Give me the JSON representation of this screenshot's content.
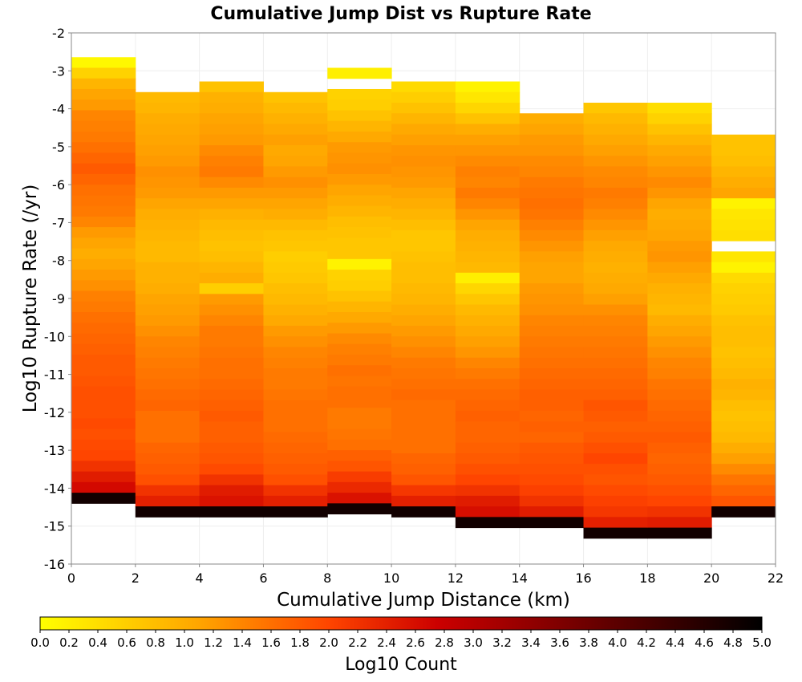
{
  "chart_data": {
    "type": "heatmap",
    "title": "Cumulative Jump Dist vs Rupture Rate",
    "xlabel": "Cumulative Jump Distance (km)",
    "ylabel": "Log10 Rupture Rate (/yr)",
    "colorbar_label": "Log10 Count",
    "xlim": [
      0,
      22
    ],
    "ylim": [
      -16,
      -2
    ],
    "x_ticks": [
      "0",
      "2",
      "4",
      "6",
      "8",
      "10",
      "12",
      "14",
      "16",
      "18",
      "20",
      "22"
    ],
    "y_ticks": [
      "-2",
      "-3",
      "-4",
      "-5",
      "-6",
      "-7",
      "-8",
      "-9",
      "-10",
      "-11",
      "-12",
      "-13",
      "-14",
      "-15",
      "-16"
    ],
    "colorbar_range": [
      0,
      5
    ],
    "colorbar_ticks": [
      "0.0",
      "0.2",
      "0.4",
      "0.6",
      "0.8",
      "1.0",
      "1.2",
      "1.4",
      "1.6",
      "1.8",
      "2.0",
      "2.2",
      "2.4",
      "2.6",
      "2.8",
      "3.0",
      "3.2",
      "3.4",
      "3.6",
      "3.8",
      "4.0",
      "4.2",
      "4.4",
      "4.6",
      "4.8",
      "5.0"
    ],
    "colormap": [
      "#ffff00",
      "#ffa500",
      "#ff4500",
      "#cc0000",
      "#000000"
    ],
    "x_bin_width": 2,
    "y_bin_height": 0.28,
    "x_bin_starts": [
      0,
      2,
      4,
      6,
      8,
      10,
      12,
      14,
      16,
      18,
      20
    ],
    "columns": [
      {
        "x": 0,
        "y_top": -2.64,
        "values": [
          0.08,
          0.55,
          0.9,
          1.1,
          1.2,
          1.4,
          1.45,
          1.5,
          1.6,
          1.7,
          1.8,
          1.7,
          1.6,
          1.55,
          1.5,
          1.4,
          1.2,
          1.1,
          1.0,
          1.1,
          1.2,
          1.3,
          1.45,
          1.5,
          1.6,
          1.65,
          1.7,
          1.75,
          1.8,
          1.8,
          1.85,
          1.9,
          1.9,
          1.9,
          1.95,
          1.9,
          1.95,
          2.0,
          2.2,
          2.45,
          2.65,
          4.8
        ]
      },
      {
        "x": 2,
        "y_top": -3.56,
        "values": [
          0.85,
          0.9,
          1.0,
          1.05,
          1.1,
          1.15,
          1.2,
          1.3,
          1.25,
          1.2,
          1.1,
          1.0,
          0.95,
          0.9,
          0.85,
          0.85,
          0.95,
          0.95,
          1.0,
          1.1,
          1.15,
          1.2,
          1.3,
          1.4,
          1.45,
          1.5,
          1.55,
          1.6,
          1.65,
          1.7,
          1.6,
          1.6,
          1.6,
          1.7,
          1.75,
          1.8,
          1.9,
          2.2,
          2.4,
          4.8
        ]
      },
      {
        "x": 4,
        "y_top": -3.28,
        "values": [
          0.75,
          0.95,
          1.0,
          1.1,
          1.15,
          1.2,
          1.35,
          1.45,
          1.5,
          1.35,
          1.2,
          1.1,
          0.95,
          0.85,
          0.8,
          0.75,
          0.8,
          0.9,
          1.0,
          0.6,
          1.2,
          1.3,
          1.4,
          1.5,
          1.5,
          1.55,
          1.6,
          1.6,
          1.65,
          1.7,
          1.75,
          1.8,
          1.75,
          1.75,
          1.8,
          1.85,
          1.95,
          2.2,
          2.45,
          2.55,
          4.8
        ]
      },
      {
        "x": 6,
        "y_top": -3.56,
        "values": [
          0.75,
          0.85,
          0.95,
          1.05,
          1.15,
          1.05,
          1.1,
          1.2,
          1.3,
          1.2,
          1.1,
          1.0,
          0.85,
          0.75,
          0.7,
          0.6,
          0.65,
          0.7,
          0.8,
          0.85,
          0.95,
          1.05,
          1.2,
          1.3,
          1.4,
          1.45,
          1.5,
          1.5,
          1.55,
          1.6,
          1.6,
          1.6,
          1.65,
          1.7,
          1.75,
          1.8,
          1.9,
          2.2,
          2.4,
          4.8
        ]
      },
      {
        "x": 8,
        "y_top": -2.92,
        "values": [
          0.2,
          null,
          0.55,
          0.6,
          0.75,
          0.9,
          1.05,
          1.2,
          1.25,
          1.3,
          1.2,
          1.1,
          1.0,
          0.9,
          0.8,
          0.75,
          0.7,
          0.7,
          0.15,
          0.55,
          0.6,
          0.75,
          0.9,
          1.05,
          1.2,
          1.35,
          1.45,
          1.5,
          1.6,
          1.55,
          1.6,
          1.6,
          1.5,
          1.5,
          1.55,
          1.6,
          1.75,
          1.85,
          2.1,
          2.3,
          2.55,
          4.8
        ]
      },
      {
        "x": 10,
        "y_top": -3.28,
        "values": [
          0.45,
          0.6,
          0.75,
          0.9,
          1.05,
          1.15,
          1.25,
          1.3,
          1.25,
          1.2,
          1.1,
          1.0,
          0.9,
          0.8,
          0.7,
          0.7,
          0.75,
          0.8,
          0.8,
          0.85,
          0.9,
          1.0,
          1.1,
          1.2,
          1.3,
          1.4,
          1.5,
          1.55,
          1.6,
          1.65,
          1.6,
          1.6,
          1.6,
          1.6,
          1.6,
          1.7,
          1.75,
          1.85,
          2.15,
          2.4,
          4.8
        ]
      },
      {
        "x": 12,
        "y_top": -3.28,
        "values": [
          0.15,
          0.3,
          0.5,
          0.75,
          1.0,
          1.15,
          1.25,
          1.35,
          1.45,
          1.4,
          1.5,
          1.4,
          1.25,
          1.1,
          1.0,
          0.95,
          0.9,
          0.85,
          0.2,
          0.5,
          0.7,
          0.85,
          0.95,
          1.05,
          1.15,
          1.25,
          1.4,
          1.5,
          1.6,
          1.65,
          1.7,
          1.75,
          1.7,
          1.7,
          1.75,
          1.8,
          1.9,
          2.0,
          2.2,
          2.45,
          2.6,
          4.8
        ]
      },
      {
        "x": 14,
        "y_top": -4.12,
        "values": [
          1.0,
          1.1,
          1.2,
          1.25,
          1.35,
          1.4,
          1.5,
          1.55,
          1.6,
          1.55,
          1.45,
          1.35,
          1.25,
          1.15,
          1.1,
          1.1,
          1.2,
          1.25,
          1.3,
          1.4,
          1.45,
          1.5,
          1.55,
          1.6,
          1.65,
          1.7,
          1.75,
          1.75,
          1.7,
          1.75,
          1.7,
          1.8,
          1.85,
          1.9,
          1.95,
          2.05,
          2.2,
          2.45,
          4.8
        ]
      },
      {
        "x": 16,
        "y_top": -3.84,
        "values": [
          0.7,
          0.85,
          0.95,
          1.05,
          1.15,
          1.25,
          1.35,
          1.4,
          1.5,
          1.45,
          1.35,
          1.25,
          1.15,
          1.05,
          1.0,
          0.95,
          1.0,
          1.05,
          1.15,
          1.3,
          1.4,
          1.45,
          1.5,
          1.55,
          1.6,
          1.65,
          1.7,
          1.75,
          1.85,
          1.8,
          1.75,
          1.8,
          1.9,
          2.0,
          1.9,
          1.85,
          1.95,
          2.05,
          2.15,
          2.4,
          4.8
        ]
      },
      {
        "x": 18,
        "y_top": -3.84,
        "values": [
          0.4,
          0.55,
          0.75,
          0.9,
          1.05,
          1.15,
          1.25,
          1.35,
          1.25,
          1.1,
          1.0,
          1.05,
          1.1,
          1.2,
          1.25,
          1.15,
          1.05,
          0.95,
          0.9,
          0.85,
          1.0,
          1.1,
          1.2,
          1.3,
          1.4,
          1.45,
          1.55,
          1.6,
          1.65,
          1.7,
          1.75,
          1.8,
          1.75,
          1.7,
          1.75,
          1.8,
          1.9,
          2.0,
          2.2,
          2.45,
          4.8
        ]
      },
      {
        "x": 20,
        "y_top": -4.68,
        "values": [
          0.75,
          0.75,
          0.8,
          0.9,
          1.0,
          1.1,
          0.15,
          0.3,
          0.35,
          0.4,
          null,
          0.3,
          0.15,
          0.45,
          0.55,
          0.6,
          0.65,
          0.75,
          0.8,
          0.8,
          0.75,
          0.8,
          0.85,
          0.95,
          0.9,
          0.8,
          0.75,
          0.8,
          0.85,
          1.0,
          1.15,
          1.35,
          1.55,
          1.7,
          1.85,
          4.8
        ]
      }
    ]
  }
}
